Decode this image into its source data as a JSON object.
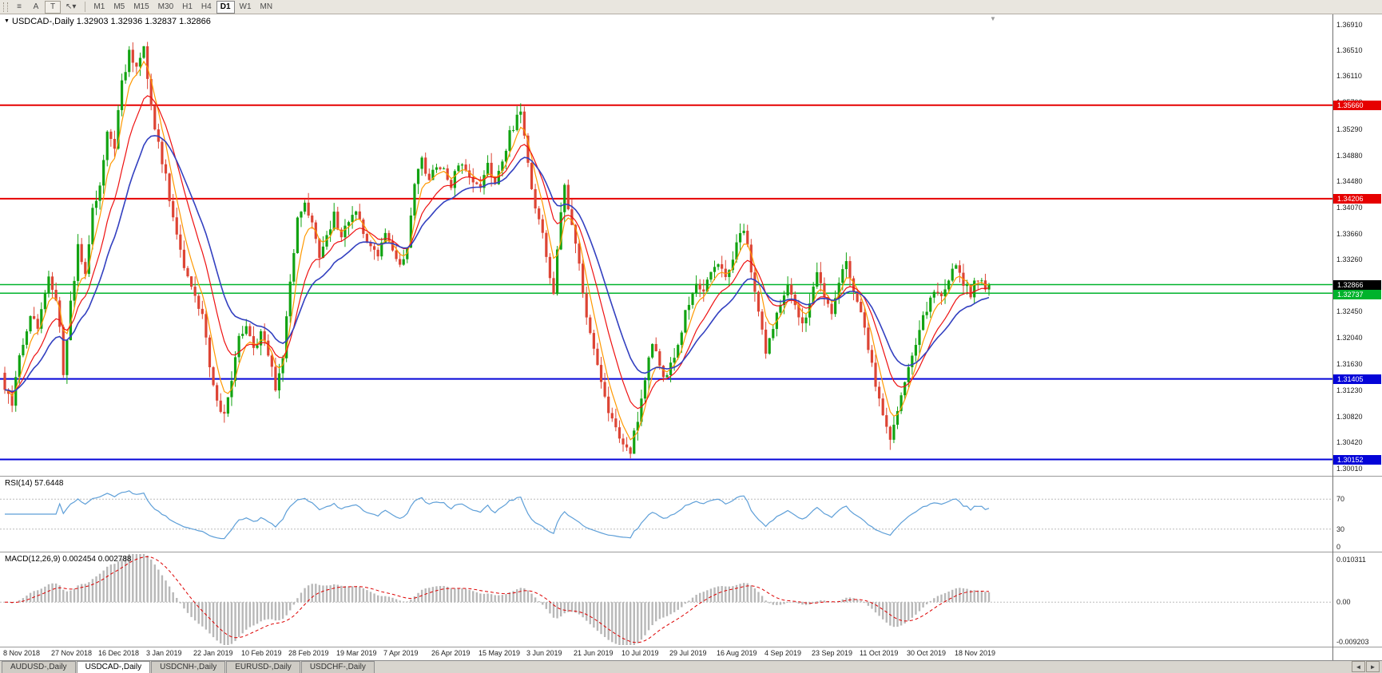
{
  "toolbar": {
    "menu_icon": "≡",
    "arrow_button": "A",
    "text_button": "T",
    "cursor_icon": "↖",
    "cursor_dropdown_icon": "▾",
    "timeframes": [
      "M1",
      "M5",
      "M15",
      "M30",
      "H1",
      "H4",
      "D1",
      "W1",
      "MN"
    ],
    "active_timeframe": "D1"
  },
  "chart": {
    "collapse_icon": "▼",
    "symbol_title": "USDCAD-,Daily",
    "ohlc": "1.32903 1.32936 1.32837 1.32866",
    "current_price": {
      "value": 1.32866,
      "label": "1.32866",
      "badge_color": "#000000"
    },
    "price_axis": [
      "1.36910",
      "1.36510",
      "1.36110",
      "1.35700",
      "1.35290",
      "1.34880",
      "1.34480",
      "1.34070",
      "1.33660",
      "1.33260",
      "1.32860",
      "1.32450",
      "1.32040",
      "1.31630",
      "1.31230",
      "1.30820",
      "1.30420",
      "1.30010"
    ],
    "price_axis_values": [
      1.3691,
      1.3651,
      1.3611,
      1.357,
      1.3529,
      1.3488,
      1.3448,
      1.3407,
      1.3366,
      1.3326,
      1.3286,
      1.3245,
      1.3204,
      1.3163,
      1.3123,
      1.3082,
      1.3042,
      1.3001
    ],
    "hlines": [
      {
        "price": 1.3566,
        "label": "1.35660",
        "color": "#e60000",
        "width": 2
      },
      {
        "price": 1.34206,
        "label": "1.34206",
        "color": "#e60000",
        "width": 2
      },
      {
        "price": 1.3287,
        "label": "",
        "color": "#00b32c",
        "width": 1.5
      },
      {
        "price": 1.32737,
        "label": "1.32737",
        "color": "#00b32c",
        "width": 1.5
      },
      {
        "price": 1.31405,
        "label": "1.31405",
        "color": "#0404d8",
        "width": 2
      },
      {
        "price": 1.30152,
        "label": "1.30152",
        "color": "#0404d8",
        "width": 2
      }
    ],
    "colors": {
      "up": "#12a312",
      "down": "#dd4434",
      "ma_fast": "#ff9900",
      "ma_mid": "#ee1111",
      "ma_slow": "#3340c0",
      "rsi_line": "#5e9fd8",
      "macd_hist": "#b8b8b8",
      "macd_signal": "#dd0000",
      "grid_dash": "#bbbbbb"
    }
  },
  "chart_data": {
    "type": "candlestick",
    "symbol": "USDCAD",
    "period": "Daily",
    "open": 1.32903,
    "high": 1.32936,
    "low": 1.32837,
    "close": 1.32866,
    "price_max_visible": 1.37071,
    "price_min_visible": 1.29898,
    "candle_count": 270,
    "close_path_anchors": [
      [
        0,
        1.3125
      ],
      [
        2,
        1.3095
      ],
      [
        4,
        1.318
      ],
      [
        7,
        1.3235
      ],
      [
        9,
        1.3225
      ],
      [
        12,
        1.33
      ],
      [
        14,
        1.326
      ],
      [
        15,
        1.3215
      ],
      [
        16,
        1.315
      ],
      [
        18,
        1.3255
      ],
      [
        20,
        1.3345
      ],
      [
        22,
        1.331
      ],
      [
        24,
        1.34
      ],
      [
        26,
        1.3445
      ],
      [
        28,
        1.353
      ],
      [
        30,
        1.3505
      ],
      [
        32,
        1.36
      ],
      [
        34,
        1.3645
      ],
      [
        36,
        1.362
      ],
      [
        38,
        1.3655
      ],
      [
        40,
        1.3565
      ],
      [
        42,
        1.3505
      ],
      [
        44,
        1.3455
      ],
      [
        46,
        1.3385
      ],
      [
        48,
        1.3335
      ],
      [
        50,
        1.3305
      ],
      [
        52,
        1.3265
      ],
      [
        54,
        1.3245
      ],
      [
        56,
        1.3165
      ],
      [
        58,
        1.311
      ],
      [
        60,
        1.308
      ],
      [
        62,
        1.3135
      ],
      [
        64,
        1.3205
      ],
      [
        66,
        1.3215
      ],
      [
        68,
        1.3185
      ],
      [
        70,
        1.3215
      ],
      [
        72,
        1.318
      ],
      [
        74,
        1.313
      ],
      [
        76,
        1.318
      ],
      [
        78,
        1.329
      ],
      [
        80,
        1.3385
      ],
      [
        82,
        1.342
      ],
      [
        84,
        1.338
      ],
      [
        86,
        1.333
      ],
      [
        88,
        1.336
      ],
      [
        90,
        1.3395
      ],
      [
        92,
        1.3365
      ],
      [
        94,
        1.3385
      ],
      [
        96,
        1.34
      ],
      [
        98,
        1.337
      ],
      [
        100,
        1.3345
      ],
      [
        102,
        1.3335
      ],
      [
        104,
        1.336
      ],
      [
        106,
        1.334
      ],
      [
        108,
        1.332
      ],
      [
        110,
        1.334
      ],
      [
        112,
        1.344
      ],
      [
        114,
        1.348
      ],
      [
        116,
        1.345
      ],
      [
        118,
        1.3475
      ],
      [
        120,
        1.3465
      ],
      [
        122,
        1.344
      ],
      [
        124,
        1.3475
      ],
      [
        126,
        1.3465
      ],
      [
        128,
        1.3445
      ],
      [
        130,
        1.3435
      ],
      [
        132,
        1.347
      ],
      [
        134,
        1.345
      ],
      [
        136,
        1.348
      ],
      [
        138,
        1.352
      ],
      [
        140,
        1.3548
      ],
      [
        141,
        1.3556
      ],
      [
        143,
        1.348
      ],
      [
        145,
        1.3405
      ],
      [
        147,
        1.3372
      ],
      [
        149,
        1.33
      ],
      [
        150,
        1.3272
      ],
      [
        152,
        1.34
      ],
      [
        153,
        1.3435
      ],
      [
        155,
        1.338
      ],
      [
        157,
        1.332
      ],
      [
        159,
        1.324
      ],
      [
        161,
        1.318
      ],
      [
        163,
        1.313
      ],
      [
        165,
        1.309
      ],
      [
        167,
        1.3058
      ],
      [
        169,
        1.304
      ],
      [
        171,
        1.3028
      ],
      [
        173,
        1.308
      ],
      [
        175,
        1.314
      ],
      [
        177,
        1.3198
      ],
      [
        179,
        1.316
      ],
      [
        181,
        1.314
      ],
      [
        183,
        1.318
      ],
      [
        185,
        1.322
      ],
      [
        187,
        1.3262
      ],
      [
        189,
        1.329
      ],
      [
        191,
        1.327
      ],
      [
        193,
        1.3305
      ],
      [
        195,
        1.332
      ],
      [
        197,
        1.33
      ],
      [
        199,
        1.333
      ],
      [
        201,
        1.3368
      ],
      [
        202,
        1.3378
      ],
      [
        204,
        1.331
      ],
      [
        206,
        1.324
      ],
      [
        208,
        1.318
      ],
      [
        210,
        1.322
      ],
      [
        212,
        1.3262
      ],
      [
        214,
        1.329
      ],
      [
        216,
        1.3252
      ],
      [
        218,
        1.3225
      ],
      [
        220,
        1.326
      ],
      [
        222,
        1.33
      ],
      [
        224,
        1.327
      ],
      [
        226,
        1.324
      ],
      [
        228,
        1.329
      ],
      [
        230,
        1.332
      ],
      [
        232,
        1.328
      ],
      [
        234,
        1.324
      ],
      [
        236,
        1.319
      ],
      [
        238,
        1.313
      ],
      [
        240,
        1.308
      ],
      [
        242,
        1.305
      ],
      [
        244,
        1.309
      ],
      [
        246,
        1.314
      ],
      [
        248,
        1.318
      ],
      [
        250,
        1.322
      ],
      [
        252,
        1.325
      ],
      [
        254,
        1.328
      ],
      [
        256,
        1.3268
      ],
      [
        258,
        1.33
      ],
      [
        260,
        1.332
      ],
      [
        262,
        1.3292
      ],
      [
        264,
        1.3272
      ],
      [
        266,
        1.33
      ],
      [
        268,
        1.3282
      ],
      [
        269,
        1.32866
      ]
    ],
    "x_labels": [
      "8 Nov 2018",
      "27 Nov 2018",
      "16 Dec 2018",
      "3 Jan 2019",
      "22 Jan 2019",
      "10 Feb 2019",
      "28 Feb 2019",
      "19 Mar 2019",
      "7 Apr 2019",
      "26 Apr 2019",
      "15 May 2019",
      "3 Jun 2019",
      "21 Jun 2019",
      "10 Jul 2019",
      "29 Jul 2019",
      "16 Aug 2019",
      "4 Sep 2019",
      "23 Sep 2019",
      "11 Oct 2019",
      "30 Oct 2019",
      "18 Nov 2019"
    ]
  },
  "rsi_panel": {
    "label": "RSI(14) 57.6448",
    "value": 57.6448,
    "levels": [
      70,
      30,
      0
    ],
    "axis_labels": [
      "70",
      "30",
      "0"
    ]
  },
  "macd_panel": {
    "label": "MACD(12,26,9) 0.002454 0.002788",
    "values": [
      0.002454,
      0.002788
    ],
    "axis_labels": [
      "0.010311",
      "0.00",
      "-0.009203"
    ],
    "axis_max": 0.010311,
    "axis_min": -0.009203
  },
  "tabs": {
    "items": [
      {
        "label": "AUDUSD-,Daily",
        "active": false
      },
      {
        "label": "USDCAD-,Daily",
        "active": true
      },
      {
        "label": "USDCNH-,Daily",
        "active": false
      },
      {
        "label": "EURUSD-,Daily",
        "active": false
      },
      {
        "label": "USDCHF-,Daily",
        "active": false
      }
    ],
    "scroll_left": "◄",
    "scroll_right": "►"
  }
}
